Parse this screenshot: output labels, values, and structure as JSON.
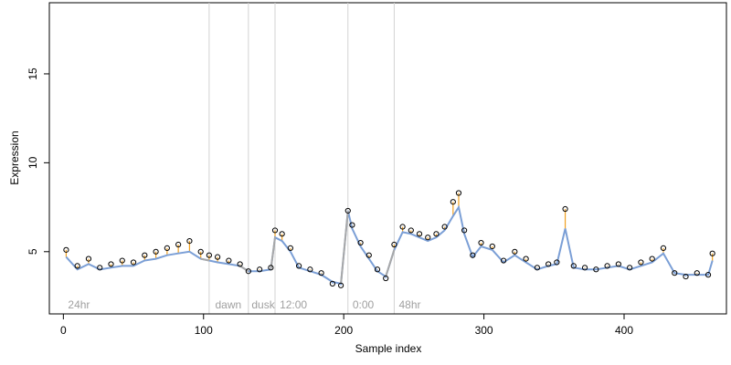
{
  "chart_data": {
    "type": "line",
    "title": "",
    "xlabel": "Sample index",
    "ylabel": "Expression",
    "xlim": [
      -10,
      473
    ],
    "ylim": [
      1.5,
      19.0
    ],
    "xticks": [
      0,
      100,
      200,
      300,
      400
    ],
    "yticks": [
      5,
      10,
      15
    ],
    "grid": false,
    "colors": {
      "fitted_line": "#7b9fd6",
      "fitted_line_gray": "#a8a8a8",
      "residual_up": "#f0a020",
      "residual_down": "#7b9fd6",
      "points": "#000000",
      "separators": "#d3d3d3",
      "segment_labels": "#a0a0a0"
    },
    "separators": [
      104,
      132,
      151,
      203,
      236
    ],
    "segment_labels": [
      {
        "x": 2,
        "label": "24hr"
      },
      {
        "x": 107,
        "label": "dawn"
      },
      {
        "x": 133,
        "label": "dusk"
      },
      {
        "x": 153,
        "label": "12:00"
      },
      {
        "x": 205,
        "label": "0:00"
      },
      {
        "x": 238,
        "label": "48hr"
      }
    ],
    "x": [
      2,
      10,
      18,
      26,
      34,
      42,
      50,
      58,
      66,
      74,
      82,
      90,
      98,
      104,
      110,
      118,
      126,
      132,
      140,
      148,
      151,
      156,
      162,
      168,
      176,
      184,
      192,
      198,
      203,
      206,
      212,
      218,
      224,
      230,
      236,
      242,
      248,
      254,
      260,
      266,
      272,
      278,
      282,
      286,
      292,
      298,
      306,
      314,
      322,
      330,
      338,
      346,
      352,
      358,
      364,
      372,
      380,
      388,
      396,
      404,
      412,
      420,
      428,
      436,
      444,
      452,
      460,
      463
    ],
    "observed": [
      5.1,
      4.2,
      4.6,
      4.1,
      4.3,
      4.5,
      4.4,
      4.8,
      5.0,
      5.2,
      5.4,
      5.6,
      5.0,
      4.8,
      4.7,
      4.5,
      4.3,
      3.9,
      4.0,
      4.1,
      6.2,
      6.0,
      5.2,
      4.2,
      4.0,
      3.8,
      3.2,
      3.1,
      7.3,
      6.5,
      5.5,
      4.8,
      4.0,
      3.5,
      5.4,
      6.4,
      6.2,
      6.0,
      5.8,
      6.0,
      6.4,
      7.8,
      8.3,
      6.2,
      4.8,
      5.5,
      5.3,
      4.5,
      5.0,
      4.6,
      4.1,
      4.3,
      4.4,
      7.4,
      4.2,
      4.1,
      4.0,
      4.2,
      4.3,
      4.1,
      4.4,
      4.6,
      5.2,
      3.8,
      3.6,
      3.8,
      3.7,
      4.9
    ],
    "fitted": [
      4.7,
      4.0,
      4.3,
      4.0,
      4.1,
      4.2,
      4.2,
      4.5,
      4.6,
      4.8,
      4.9,
      5.0,
      4.6,
      4.5,
      4.4,
      4.3,
      4.2,
      3.9,
      3.9,
      4.0,
      5.8,
      5.6,
      5.0,
      4.1,
      3.9,
      3.7,
      3.3,
      3.2,
      7.3,
      6.3,
      5.3,
      4.6,
      3.9,
      3.6,
      5.1,
      6.1,
      6.0,
      5.8,
      5.6,
      5.8,
      6.2,
      7.0,
      7.5,
      6.0,
      4.7,
      5.3,
      5.1,
      4.4,
      4.8,
      4.4,
      4.0,
      4.2,
      4.3,
      6.3,
      4.1,
      4.0,
      4.0,
      4.1,
      4.2,
      4.0,
      4.2,
      4.4,
      4.9,
      3.8,
      3.7,
      3.7,
      3.7,
      4.5
    ],
    "series": [
      {
        "values_key": "fitted",
        "style": "line"
      },
      {
        "values_key": "observed",
        "style": "points"
      }
    ]
  }
}
